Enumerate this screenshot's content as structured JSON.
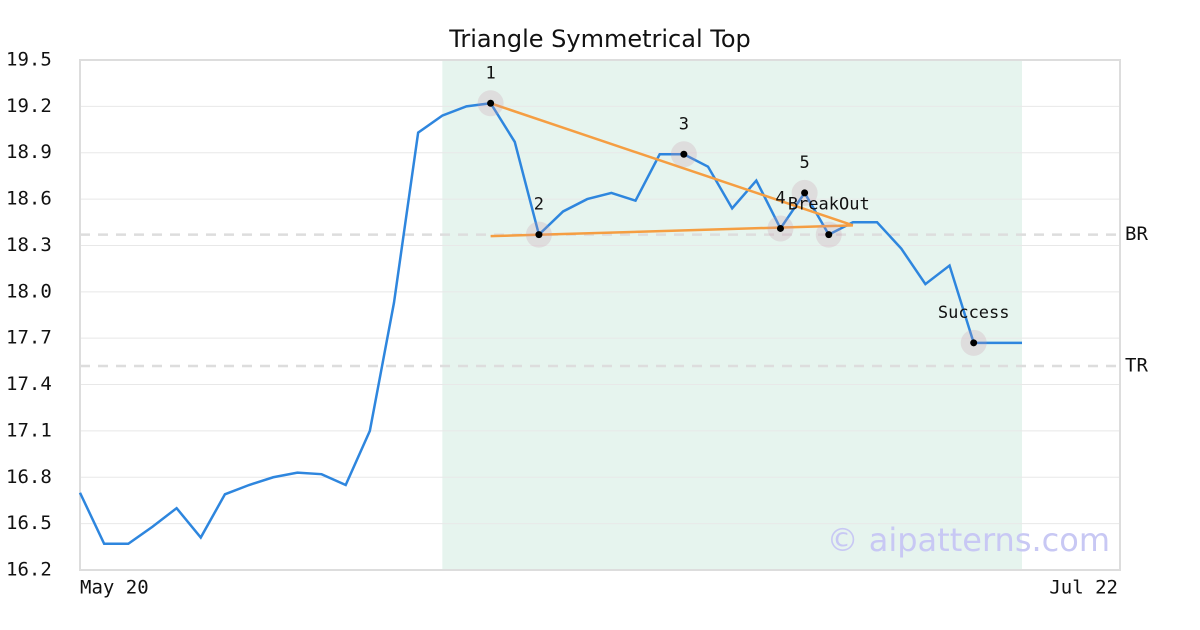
{
  "chart_data": {
    "type": "line",
    "title": "Triangle Symmetrical Top",
    "x": [
      0,
      1,
      2,
      3,
      4,
      5,
      6,
      7,
      8,
      9,
      10,
      11,
      12,
      13,
      14,
      15,
      16,
      17,
      18,
      19,
      20,
      21,
      22,
      23,
      24,
      25,
      26,
      27,
      28,
      29,
      30,
      31,
      32,
      33,
      34,
      35,
      36,
      37,
      38,
      39
    ],
    "series": [
      {
        "color": "#2e86de",
        "values": [
          16.7,
          16.37,
          16.37,
          16.48,
          16.6,
          16.41,
          16.69,
          16.75,
          16.8,
          16.83,
          16.82,
          16.75,
          17.1,
          17.93,
          19.03,
          19.14,
          19.2,
          19.22,
          18.97,
          18.37,
          18.52,
          18.6,
          18.64,
          18.59,
          18.89,
          18.89,
          18.81,
          18.54,
          18.72,
          18.41,
          18.64,
          18.37,
          18.45,
          18.45,
          18.28,
          18.05,
          18.17,
          17.67,
          17.67,
          17.67
        ]
      }
    ],
    "xlim": [
      0,
      39
    ],
    "xticks": [
      {
        "value": 0,
        "label": "May 20"
      },
      {
        "value": 39,
        "label": "Jul 22"
      }
    ],
    "ylim": [
      16.2,
      19.5
    ],
    "yticks": [
      16.2,
      16.5,
      16.8,
      17.1,
      17.4,
      17.7,
      {
        "value": 18,
        "label": "18.0"
      },
      18.3,
      18.6,
      18.9,
      19.2,
      19.5
    ],
    "grid": true,
    "shade": {
      "color": "#e6f4ee",
      "x": [
        15,
        39
      ]
    },
    "levels": [
      {
        "name": "BR",
        "value": 18.37
      },
      {
        "name": "TR",
        "value": 17.52
      }
    ],
    "trendlines": [
      {
        "color": "#f59e42",
        "x": [
          17,
          32
        ],
        "y": [
          19.22,
          18.43
        ]
      },
      {
        "color": "#f59e42",
        "x": [
          17,
          32
        ],
        "y": [
          18.36,
          18.43
        ]
      }
    ],
    "points": [
      {
        "label": "1",
        "x": 17,
        "y": 19.22
      },
      {
        "label": "2",
        "x": 19,
        "y": 18.37
      },
      {
        "label": "3",
        "x": 25,
        "y": 18.89
      },
      {
        "label": "4",
        "x": 29,
        "y": 18.41
      },
      {
        "label": "5",
        "x": 30,
        "y": 18.64
      },
      {
        "label": "BreakOut",
        "x": 31,
        "y": 18.37
      },
      {
        "label": "Success",
        "x": 37,
        "y": 17.67
      }
    ],
    "watermark": "© aipatterns.com"
  }
}
